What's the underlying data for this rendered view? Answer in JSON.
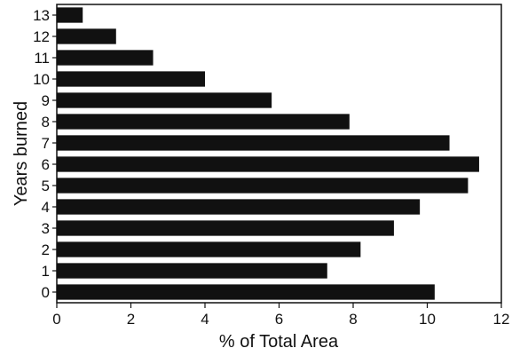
{
  "chart_data": {
    "type": "bar",
    "orientation": "horizontal",
    "title": "",
    "xlabel": "% of Total Area",
    "ylabel": "Years burned",
    "xlim": [
      0,
      12
    ],
    "x_ticks": [
      "0",
      "2",
      "4",
      "6",
      "8",
      "10",
      "12"
    ],
    "categories": [
      "0",
      "1",
      "2",
      "3",
      "4",
      "5",
      "6",
      "7",
      "8",
      "9",
      "10",
      "11",
      "12",
      "13"
    ],
    "values": [
      10.2,
      7.3,
      8.2,
      9.1,
      9.8,
      11.1,
      11.4,
      10.6,
      7.9,
      5.8,
      4.0,
      2.6,
      1.6,
      0.7
    ],
    "bar_color": "#111111",
    "grid": false,
    "legend": "none"
  }
}
